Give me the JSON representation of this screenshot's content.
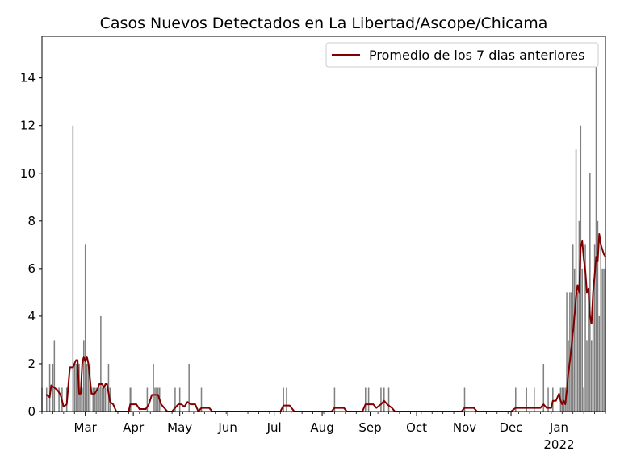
{
  "chart_data": {
    "type": "bar",
    "title": "Casos Nuevos Detectados en La Libertad/Ascope/Chicama",
    "xlabel": "",
    "ylabel": "",
    "x_range": [
      "2021-02-01",
      "2022-01-31"
    ],
    "ylim": [
      0,
      15.75
    ],
    "yticks": [
      0,
      2,
      4,
      6,
      8,
      10,
      12,
      14
    ],
    "xticks": [
      {
        "date": "2021-03-01",
        "label": "Mar"
      },
      {
        "date": "2021-04-01",
        "label": "Apr"
      },
      {
        "date": "2021-05-01",
        "label": "May"
      },
      {
        "date": "2021-06-01",
        "label": "Jun"
      },
      {
        "date": "2021-07-01",
        "label": "Jul"
      },
      {
        "date": "2021-08-01",
        "label": "Aug"
      },
      {
        "date": "2021-09-01",
        "label": "Sep"
      },
      {
        "date": "2021-10-01",
        "label": "Oct"
      },
      {
        "date": "2021-11-01",
        "label": "Nov"
      },
      {
        "date": "2021-12-01",
        "label": "Dec"
      },
      {
        "date": "2022-01-01",
        "label": "Jan",
        "sublabel": "2022"
      }
    ],
    "grid": false,
    "legend": {
      "position": "top-right"
    },
    "series": [
      {
        "kind": "bar",
        "color": "#808080",
        "points": [
          [
            "2021-02-01",
            1
          ],
          [
            "2021-02-04",
            1
          ],
          [
            "2021-02-06",
            2
          ],
          [
            "2021-02-08",
            2
          ],
          [
            "2021-02-09",
            3
          ],
          [
            "2021-02-12",
            1
          ],
          [
            "2021-02-14",
            1
          ],
          [
            "2021-02-17",
            1
          ],
          [
            "2021-02-21",
            12
          ],
          [
            "2021-02-22",
            2
          ],
          [
            "2021-02-23",
            2
          ],
          [
            "2021-02-24",
            2
          ],
          [
            "2021-02-25",
            2
          ],
          [
            "2021-02-26",
            1
          ],
          [
            "2021-02-27",
            1
          ],
          [
            "2021-02-28",
            3
          ],
          [
            "2021-03-01",
            7
          ],
          [
            "2021-03-02",
            2
          ],
          [
            "2021-03-03",
            2
          ],
          [
            "2021-03-04",
            2
          ],
          [
            "2021-03-06",
            1
          ],
          [
            "2021-03-07",
            1
          ],
          [
            "2021-03-08",
            1
          ],
          [
            "2021-03-09",
            1
          ],
          [
            "2021-03-10",
            1
          ],
          [
            "2021-03-11",
            4
          ],
          [
            "2021-03-12",
            1
          ],
          [
            "2021-03-13",
            1
          ],
          [
            "2021-03-14",
            1
          ],
          [
            "2021-03-16",
            2
          ],
          [
            "2021-03-17",
            1
          ],
          [
            "2021-03-30",
            1
          ],
          [
            "2021-03-31",
            1
          ],
          [
            "2021-04-10",
            1
          ],
          [
            "2021-04-14",
            2
          ],
          [
            "2021-04-15",
            1
          ],
          [
            "2021-04-16",
            1
          ],
          [
            "2021-04-17",
            1
          ],
          [
            "2021-04-18",
            1
          ],
          [
            "2021-04-28",
            1
          ],
          [
            "2021-05-01",
            1
          ],
          [
            "2021-05-07",
            2
          ],
          [
            "2021-05-15",
            1
          ],
          [
            "2021-07-07",
            1
          ],
          [
            "2021-07-09",
            1
          ],
          [
            "2021-08-09",
            1
          ],
          [
            "2021-08-29",
            1
          ],
          [
            "2021-08-31",
            1
          ],
          [
            "2021-09-08",
            1
          ],
          [
            "2021-09-10",
            1
          ],
          [
            "2021-09-13",
            1
          ],
          [
            "2021-11-01",
            1
          ],
          [
            "2021-12-04",
            1
          ],
          [
            "2021-12-11",
            1
          ],
          [
            "2021-12-16",
            1
          ],
          [
            "2021-12-22",
            2
          ],
          [
            "2021-12-25",
            1
          ],
          [
            "2021-12-28",
            1
          ],
          [
            "2022-01-02",
            1
          ],
          [
            "2022-01-03",
            1
          ],
          [
            "2022-01-04",
            1
          ],
          [
            "2022-01-05",
            1
          ],
          [
            "2022-01-06",
            5
          ],
          [
            "2022-01-07",
            3
          ],
          [
            "2022-01-08",
            5
          ],
          [
            "2022-01-09",
            5
          ],
          [
            "2022-01-10",
            7
          ],
          [
            "2022-01-11",
            6
          ],
          [
            "2022-01-12",
            11
          ],
          [
            "2022-01-13",
            5
          ],
          [
            "2022-01-14",
            8
          ],
          [
            "2022-01-15",
            12
          ],
          [
            "2022-01-16",
            6
          ],
          [
            "2022-01-17",
            1
          ],
          [
            "2022-01-18",
            7
          ],
          [
            "2022-01-19",
            3
          ],
          [
            "2022-01-20",
            5
          ],
          [
            "2022-01-21",
            10
          ],
          [
            "2022-01-22",
            3
          ],
          [
            "2022-01-23",
            5
          ],
          [
            "2022-01-24",
            7
          ],
          [
            "2022-01-25",
            15
          ],
          [
            "2022-01-26",
            8
          ],
          [
            "2022-01-27",
            4
          ],
          [
            "2022-01-28",
            7
          ],
          [
            "2022-01-29",
            6
          ],
          [
            "2022-01-30",
            6
          ],
          [
            "2022-01-31",
            6
          ]
        ]
      },
      {
        "kind": "line",
        "name": "Promedio de los 7 dias anteriores",
        "color": "#800000",
        "points": [
          [
            "2021-02-04",
            0.7
          ],
          [
            "2021-02-06",
            0.6
          ],
          [
            "2021-02-07",
            1.1
          ],
          [
            "2021-02-09",
            1.0
          ],
          [
            "2021-02-11",
            0.9
          ],
          [
            "2021-02-13",
            0.7
          ],
          [
            "2021-02-15",
            0.2
          ],
          [
            "2021-02-17",
            0.3
          ],
          [
            "2021-02-19",
            1.85
          ],
          [
            "2021-02-21",
            1.85
          ],
          [
            "2021-02-23",
            2.15
          ],
          [
            "2021-02-24",
            2.15
          ],
          [
            "2021-02-25",
            0.75
          ],
          [
            "2021-02-26",
            0.75
          ],
          [
            "2021-02-27",
            2.0
          ],
          [
            "2021-02-28",
            2.3
          ],
          [
            "2021-03-01",
            2.1
          ],
          [
            "2021-03-02",
            2.3
          ],
          [
            "2021-03-03",
            2.0
          ],
          [
            "2021-03-05",
            0.75
          ],
          [
            "2021-03-07",
            0.75
          ],
          [
            "2021-03-09",
            0.95
          ],
          [
            "2021-03-10",
            1.15
          ],
          [
            "2021-03-12",
            1.15
          ],
          [
            "2021-03-13",
            1.0
          ],
          [
            "2021-03-14",
            1.15
          ],
          [
            "2021-03-15",
            1.15
          ],
          [
            "2021-03-17",
            0.4
          ],
          [
            "2021-03-19",
            0.3
          ],
          [
            "2021-03-21",
            0.0
          ],
          [
            "2021-03-27",
            0.0
          ],
          [
            "2021-03-29",
            0.0
          ],
          [
            "2021-03-30",
            0.3
          ],
          [
            "2021-04-03",
            0.3
          ],
          [
            "2021-04-05",
            0.1
          ],
          [
            "2021-04-09",
            0.1
          ],
          [
            "2021-04-11",
            0.3
          ],
          [
            "2021-04-13",
            0.7
          ],
          [
            "2021-04-15",
            0.7
          ],
          [
            "2021-04-17",
            0.7
          ],
          [
            "2021-04-19",
            0.3
          ],
          [
            "2021-04-21",
            0.15
          ],
          [
            "2021-04-23",
            0.0
          ],
          [
            "2021-04-26",
            0.0
          ],
          [
            "2021-04-28",
            0.15
          ],
          [
            "2021-04-30",
            0.3
          ],
          [
            "2021-05-02",
            0.3
          ],
          [
            "2021-05-04",
            0.2
          ],
          [
            "2021-05-06",
            0.4
          ],
          [
            "2021-05-08",
            0.3
          ],
          [
            "2021-05-11",
            0.3
          ],
          [
            "2021-05-13",
            0.0
          ],
          [
            "2021-05-15",
            0.15
          ],
          [
            "2021-05-20",
            0.15
          ],
          [
            "2021-05-22",
            0.0
          ],
          [
            "2021-07-05",
            0.0
          ],
          [
            "2021-07-07",
            0.25
          ],
          [
            "2021-07-11",
            0.25
          ],
          [
            "2021-07-14",
            0.0
          ],
          [
            "2021-08-07",
            0.0
          ],
          [
            "2021-08-09",
            0.15
          ],
          [
            "2021-08-15",
            0.15
          ],
          [
            "2021-08-17",
            0.0
          ],
          [
            "2021-08-27",
            0.0
          ],
          [
            "2021-08-29",
            0.3
          ],
          [
            "2021-09-03",
            0.3
          ],
          [
            "2021-09-05",
            0.15
          ],
          [
            "2021-09-08",
            0.3
          ],
          [
            "2021-09-10",
            0.45
          ],
          [
            "2021-09-12",
            0.3
          ],
          [
            "2021-09-15",
            0.15
          ],
          [
            "2021-09-17",
            0.0
          ],
          [
            "2021-10-30",
            0.0
          ],
          [
            "2021-11-01",
            0.15
          ],
          [
            "2021-11-07",
            0.15
          ],
          [
            "2021-11-09",
            0.0
          ],
          [
            "2021-12-01",
            0.0
          ],
          [
            "2021-12-04",
            0.15
          ],
          [
            "2021-12-20",
            0.15
          ],
          [
            "2021-12-22",
            0.3
          ],
          [
            "2021-12-24",
            0.15
          ],
          [
            "2021-12-27",
            0.15
          ],
          [
            "2021-12-28",
            0.45
          ],
          [
            "2021-12-30",
            0.45
          ],
          [
            "2022-01-01",
            0.75
          ],
          [
            "2022-01-02",
            0.45
          ],
          [
            "2022-01-03",
            0.3
          ],
          [
            "2022-01-04",
            0.45
          ],
          [
            "2022-01-05",
            0.3
          ],
          [
            "2022-01-06",
            0.85
          ],
          [
            "2022-01-07",
            1.6
          ],
          [
            "2022-01-08",
            2.1
          ],
          [
            "2022-01-09",
            2.7
          ],
          [
            "2022-01-10",
            3.3
          ],
          [
            "2022-01-11",
            4.0
          ],
          [
            "2022-01-12",
            4.8
          ],
          [
            "2022-01-13",
            5.3
          ],
          [
            "2022-01-14",
            5.0
          ],
          [
            "2022-01-15",
            6.9
          ],
          [
            "2022-01-16",
            7.15
          ],
          [
            "2022-01-17",
            6.4
          ],
          [
            "2022-01-18",
            5.9
          ],
          [
            "2022-01-19",
            5.0
          ],
          [
            "2022-01-20",
            5.15
          ],
          [
            "2022-01-21",
            4.0
          ],
          [
            "2022-01-22",
            3.7
          ],
          [
            "2022-01-23",
            5.0
          ],
          [
            "2022-01-24",
            5.7
          ],
          [
            "2022-01-25",
            6.5
          ],
          [
            "2022-01-26",
            6.3
          ],
          [
            "2022-01-27",
            7.45
          ],
          [
            "2022-01-28",
            7.0
          ],
          [
            "2022-01-29",
            6.8
          ],
          [
            "2022-01-30",
            6.6
          ],
          [
            "2022-01-31",
            6.5
          ]
        ]
      }
    ]
  }
}
